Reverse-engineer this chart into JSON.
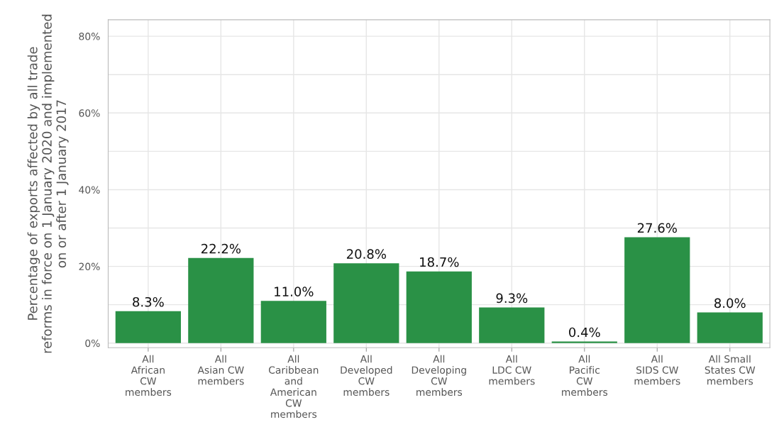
{
  "chart_data": {
    "type": "bar",
    "ylabel": "Percentage of exports affected by all trade\nreforms in force on 1 January 2020 and implemented\non or after 1 January 2017",
    "categories": [
      "All\nAfrican\nCW\nmembers",
      "All\nAsian CW\nmembers",
      "All\nCaribbean\nand\nAmerican\nCW\nmembers",
      "All\nDeveloped\nCW\nmembers",
      "All\nDeveloping\nCW\nmembers",
      "All\nLDC CW\nmembers",
      "All\nPacific\nCW\nmembers",
      "All\nSIDS CW\nmembers",
      "All Small\nStates CW\nmembers"
    ],
    "values": [
      8.3,
      22.2,
      11.0,
      20.8,
      18.7,
      9.3,
      0.4,
      27.6,
      8.0
    ],
    "value_labels": [
      "8.3%",
      "22.2%",
      "11.0%",
      "20.8%",
      "18.7%",
      "9.3%",
      "0.4%",
      "27.6%",
      "8.0%"
    ],
    "color": "#2a9146",
    "ylim": [
      -1.2,
      84.3
    ],
    "yticks": [
      {
        "value": 0,
        "label": "0%"
      },
      {
        "value": 10,
        "label": null
      },
      {
        "value": 20,
        "label": "20%"
      },
      {
        "value": 30,
        "label": null
      },
      {
        "value": 40,
        "label": "40%"
      },
      {
        "value": 50,
        "label": null
      },
      {
        "value": 60,
        "label": "60%"
      },
      {
        "value": 70,
        "label": null
      },
      {
        "value": 80,
        "label": "80%"
      }
    ],
    "grid": true,
    "legend": false
  }
}
